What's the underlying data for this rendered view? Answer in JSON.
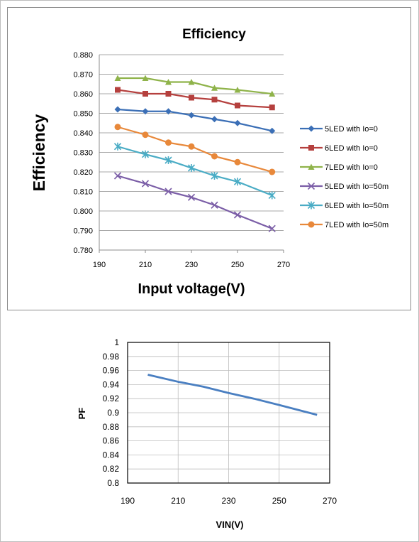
{
  "chart_data": [
    {
      "type": "line",
      "title": "Efficiency",
      "xlabel": "Input voltage(V)",
      "ylabel": "Efficiency",
      "xlim": [
        190,
        270
      ],
      "ylim": [
        0.78,
        0.88
      ],
      "xticks": [
        "190",
        "210",
        "230",
        "250",
        "270"
      ],
      "yticks": [
        "0.780",
        "0.790",
        "0.800",
        "0.810",
        "0.820",
        "0.830",
        "0.840",
        "0.850",
        "0.860",
        "0.870",
        "0.880"
      ],
      "grid": "horizontal",
      "legend_position": "right",
      "series": [
        {
          "name": "5LED with Io=0",
          "color": "#3b6fb6",
          "marker": "diamond",
          "x": [
            198,
            210,
            220,
            230,
            240,
            250,
            265
          ],
          "y": [
            0.852,
            0.851,
            0.851,
            0.849,
            0.847,
            0.845,
            0.841
          ]
        },
        {
          "name": "6LED with Io=0",
          "color": "#b5403e",
          "marker": "square",
          "x": [
            198,
            210,
            220,
            230,
            240,
            250,
            265
          ],
          "y": [
            0.862,
            0.86,
            0.86,
            0.858,
            0.857,
            0.854,
            0.853
          ]
        },
        {
          "name": "7LED with Io=0",
          "color": "#8fb34a",
          "marker": "triangle",
          "x": [
            198,
            210,
            220,
            230,
            240,
            250,
            265
          ],
          "y": [
            0.868,
            0.868,
            0.866,
            0.866,
            0.863,
            0.862,
            0.86
          ]
        },
        {
          "name": "5LED with Io=50m",
          "color": "#7b5ea7",
          "marker": "x",
          "x": [
            198,
            210,
            220,
            230,
            240,
            250,
            265
          ],
          "y": [
            0.818,
            0.814,
            0.81,
            0.807,
            0.803,
            0.798,
            0.791
          ]
        },
        {
          "name": "6LED with Io=50m",
          "color": "#4aacc5",
          "marker": "star",
          "x": [
            198,
            210,
            220,
            230,
            240,
            250,
            265
          ],
          "y": [
            0.833,
            0.829,
            0.826,
            0.822,
            0.818,
            0.815,
            0.808
          ]
        },
        {
          "name": "7LED with Io=50m",
          "color": "#e8883a",
          "marker": "circle",
          "x": [
            198,
            210,
            220,
            230,
            240,
            250,
            265
          ],
          "y": [
            0.843,
            0.839,
            0.835,
            0.833,
            0.828,
            0.825,
            0.82
          ]
        }
      ]
    },
    {
      "type": "line",
      "title": "",
      "xlabel": "VIN(V)",
      "ylabel": "PF",
      "xlim": [
        190,
        270
      ],
      "ylim": [
        0.8,
        1
      ],
      "xticks": [
        "190",
        "210",
        "230",
        "250",
        "270"
      ],
      "yticks": [
        "0.8",
        "0.82",
        "0.84",
        "0.86",
        "0.88",
        "0.9",
        "0.92",
        "0.94",
        "0.96",
        "0.98",
        "1"
      ],
      "grid": "both",
      "legend_position": "none",
      "series": [
        {
          "color": "#4a7fc1",
          "marker": "none",
          "x": [
            198,
            210,
            220,
            230,
            240,
            250,
            265
          ],
          "y": [
            0.954,
            0.944,
            0.937,
            0.928,
            0.92,
            0.911,
            0.897
          ]
        }
      ]
    }
  ]
}
